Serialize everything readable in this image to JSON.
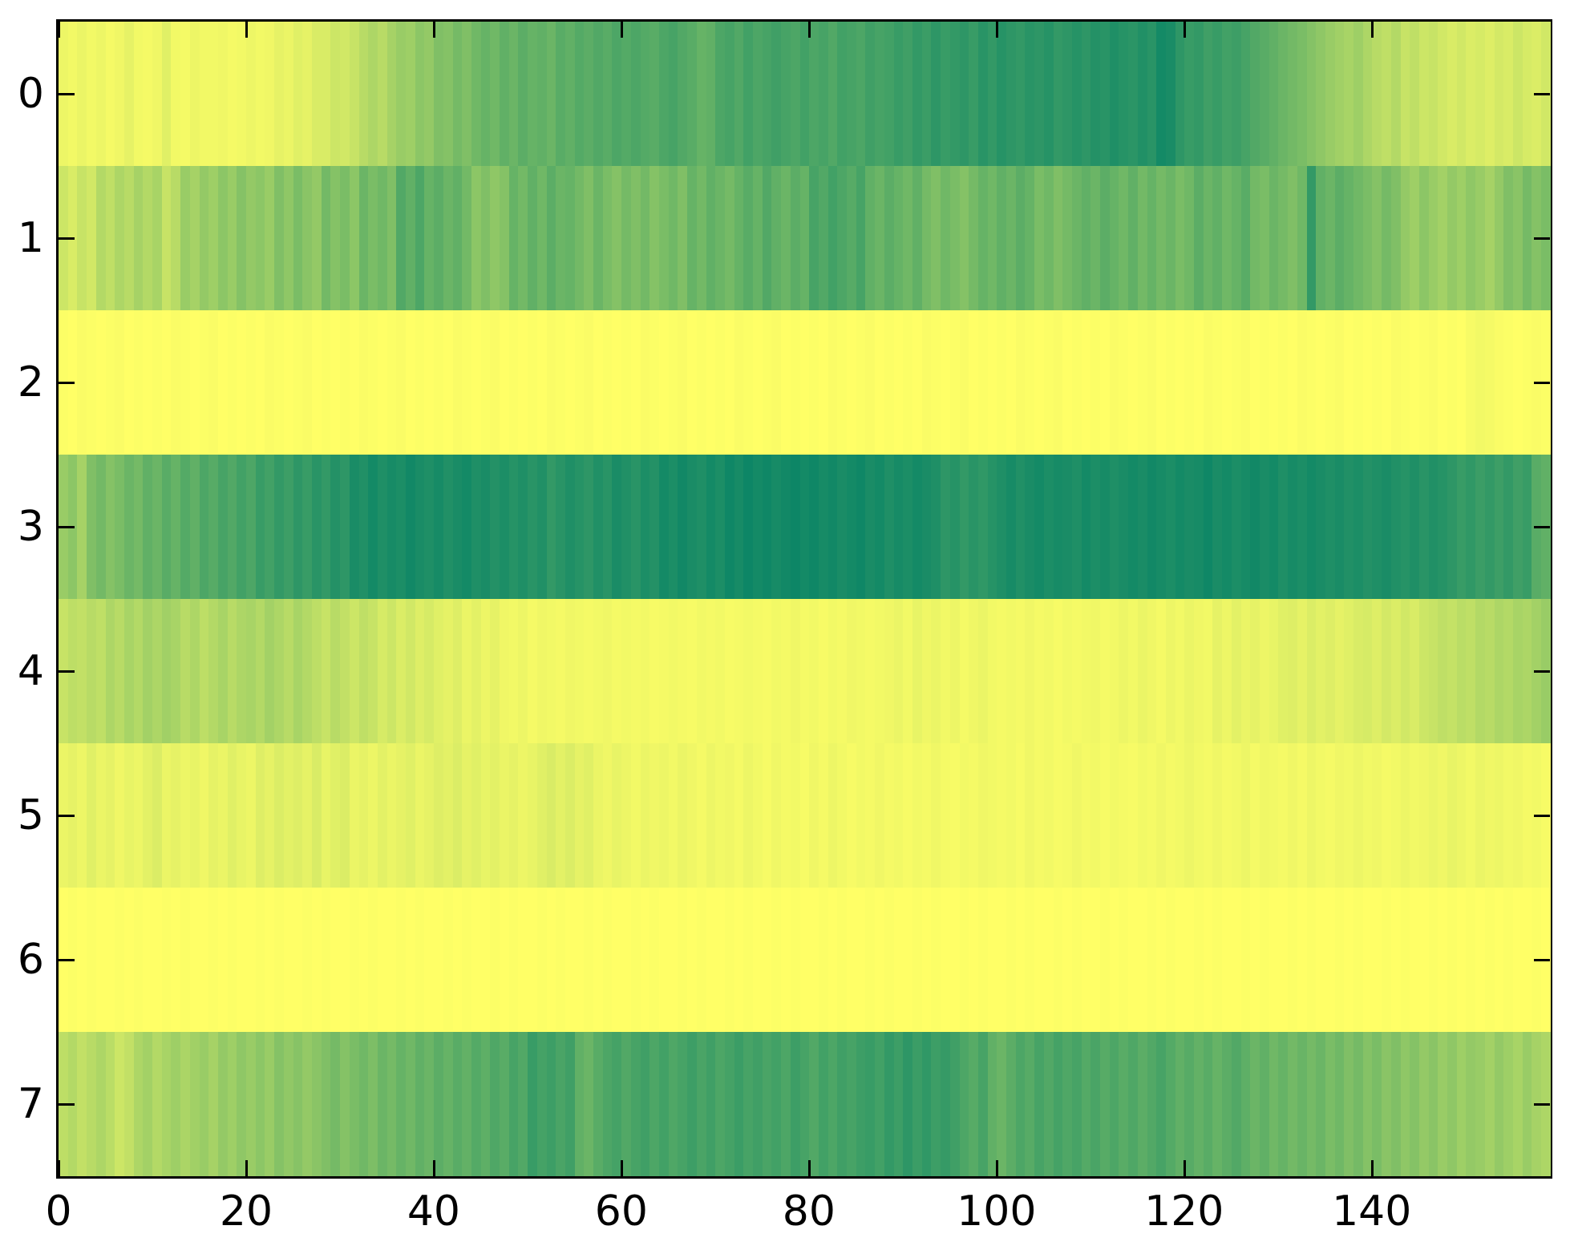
{
  "figure": {
    "background": "#ffffff"
  },
  "axis": {
    "spine_color": "#000000",
    "tick_color": "#000000",
    "tick_label_color": "#000000",
    "tick_direction": "in",
    "grid": false,
    "legend": "none",
    "title": "",
    "xlabel": "",
    "ylabel": ""
  },
  "chart_data": {
    "type": "heatmap",
    "colormap": {
      "name": "summer",
      "low_color": "#008066",
      "high_color": "#ffff66",
      "value_range": [
        0,
        1
      ]
    },
    "x_range": [
      0,
      159
    ],
    "n_rows": 8,
    "n_cols": 159,
    "x_ticks": [
      0,
      20,
      40,
      60,
      80,
      100,
      120,
      140
    ],
    "y_ticks": [
      0,
      1,
      2,
      3,
      4,
      5,
      6,
      7
    ],
    "rows": [
      [
        0.93,
        0.95,
        0.92,
        0.95,
        0.93,
        0.96,
        0.94,
        0.9,
        0.95,
        0.96,
        0.94,
        0.88,
        0.95,
        0.96,
        0.93,
        0.95,
        0.95,
        0.94,
        0.96,
        0.95,
        0.93,
        0.95,
        0.94,
        0.9,
        0.92,
        0.88,
        0.9,
        0.85,
        0.85,
        0.8,
        0.82,
        0.78,
        0.72,
        0.68,
        0.72,
        0.65,
        0.6,
        0.62,
        0.55,
        0.58,
        0.5,
        0.52,
        0.46,
        0.5,
        0.44,
        0.4,
        0.44,
        0.38,
        0.42,
        0.36,
        0.4,
        0.38,
        0.42,
        0.35,
        0.38,
        0.33,
        0.36,
        0.32,
        0.35,
        0.3,
        0.33,
        0.3,
        0.33,
        0.35,
        0.3,
        0.28,
        0.32,
        0.35,
        0.4,
        0.38,
        0.3,
        0.28,
        0.32,
        0.26,
        0.3,
        0.28,
        0.25,
        0.28,
        0.3,
        0.26,
        0.3,
        0.28,
        0.32,
        0.26,
        0.28,
        0.3,
        0.25,
        0.28,
        0.26,
        0.22,
        0.25,
        0.2,
        0.23,
        0.18,
        0.22,
        0.2,
        0.18,
        0.22,
        0.16,
        0.2,
        0.15,
        0.18,
        0.2,
        0.16,
        0.18,
        0.15,
        0.2,
        0.18,
        0.15,
        0.18,
        0.14,
        0.16,
        0.12,
        0.15,
        0.17,
        0.13,
        0.16,
        0.08,
        0.1,
        0.18,
        0.22,
        0.2,
        0.25,
        0.22,
        0.26,
        0.24,
        0.28,
        0.32,
        0.35,
        0.38,
        0.42,
        0.45,
        0.48,
        0.52,
        0.56,
        0.6,
        0.63,
        0.66,
        0.62,
        0.68,
        0.72,
        0.75,
        0.7,
        0.78,
        0.75,
        0.8,
        0.78,
        0.82,
        0.85,
        0.82,
        0.86,
        0.84,
        0.87,
        0.83,
        0.85,
        0.8,
        0.84,
        0.86,
        0.82
      ],
      [
        0.8,
        0.85,
        0.78,
        0.82,
        0.7,
        0.75,
        0.68,
        0.72,
        0.65,
        0.7,
        0.66,
        0.78,
        0.72,
        0.6,
        0.65,
        0.58,
        0.62,
        0.55,
        0.6,
        0.52,
        0.58,
        0.55,
        0.6,
        0.5,
        0.56,
        0.48,
        0.54,
        0.58,
        0.45,
        0.52,
        0.48,
        0.55,
        0.42,
        0.48,
        0.44,
        0.5,
        0.32,
        0.38,
        0.3,
        0.4,
        0.36,
        0.42,
        0.38,
        0.45,
        0.55,
        0.5,
        0.56,
        0.52,
        0.4,
        0.45,
        0.38,
        0.44,
        0.36,
        0.42,
        0.4,
        0.45,
        0.5,
        0.42,
        0.48,
        0.52,
        0.46,
        0.5,
        0.45,
        0.52,
        0.48,
        0.44,
        0.5,
        0.4,
        0.45,
        0.38,
        0.42,
        0.46,
        0.4,
        0.35,
        0.4,
        0.32,
        0.38,
        0.42,
        0.36,
        0.4,
        0.28,
        0.32,
        0.26,
        0.3,
        0.34,
        0.28,
        0.38,
        0.42,
        0.36,
        0.4,
        0.44,
        0.38,
        0.46,
        0.5,
        0.44,
        0.48,
        0.52,
        0.46,
        0.4,
        0.44,
        0.38,
        0.42,
        0.36,
        0.4,
        0.48,
        0.44,
        0.5,
        0.46,
        0.42,
        0.38,
        0.42,
        0.36,
        0.4,
        0.44,
        0.38,
        0.45,
        0.4,
        0.46,
        0.42,
        0.48,
        0.44,
        0.36,
        0.42,
        0.38,
        0.44,
        0.4,
        0.35,
        0.45,
        0.48,
        0.42,
        0.46,
        0.5,
        0.44,
        0.2,
        0.38,
        0.42,
        0.36,
        0.4,
        0.44,
        0.48,
        0.52,
        0.46,
        0.5,
        0.58,
        0.62,
        0.55,
        0.6,
        0.64,
        0.58,
        0.62,
        0.56,
        0.6,
        0.65,
        0.58,
        0.5,
        0.54,
        0.46,
        0.52,
        0.48
      ],
      [
        0.99,
        1.0,
        0.98,
        0.99,
        1.0,
        0.99,
        0.98,
        1.0,
        0.99,
        1.0,
        0.99,
        1.0,
        0.98,
        0.99,
        1.0,
        0.99,
        0.98,
        1.0,
        0.99,
        1.0,
        0.99,
        1.0,
        0.98,
        0.99,
        1.0,
        0.99,
        0.98,
        1.0,
        0.99,
        1.0,
        0.99,
        1.0,
        0.98,
        0.99,
        1.0,
        0.99,
        0.98,
        1.0,
        0.99,
        1.0,
        0.99,
        1.0,
        0.98,
        0.99,
        1.0,
        0.99,
        0.98,
        1.0,
        0.99,
        1.0,
        0.99,
        1.0,
        0.98,
        0.99,
        1.0,
        0.99,
        0.98,
        1.0,
        0.99,
        1.0,
        0.99,
        1.0,
        0.98,
        0.99,
        1.0,
        0.99,
        0.98,
        1.0,
        0.99,
        1.0,
        0.99,
        1.0,
        0.98,
        0.99,
        1.0,
        0.99,
        0.98,
        1.0,
        0.99,
        1.0,
        0.99,
        1.0,
        0.98,
        0.99,
        1.0,
        0.99,
        0.98,
        1.0,
        0.99,
        1.0,
        0.99,
        1.0,
        0.98,
        0.99,
        1.0,
        0.99,
        0.98,
        1.0,
        0.99,
        1.0,
        0.99,
        1.0,
        0.98,
        0.99,
        1.0,
        0.99,
        0.98,
        1.0,
        0.99,
        1.0,
        0.99,
        1.0,
        0.98,
        0.99,
        1.0,
        0.99,
        0.98,
        1.0,
        0.99,
        1.0,
        0.99,
        1.0,
        0.98,
        0.99,
        1.0,
        0.99,
        0.98,
        1.0,
        0.99,
        1.0,
        0.99,
        1.0,
        0.98,
        0.99,
        1.0,
        0.99,
        0.98,
        1.0,
        0.99,
        1.0,
        0.99,
        1.0,
        0.98,
        0.99,
        1.0,
        0.99,
        0.98,
        1.0,
        0.99,
        1.0,
        0.97,
        0.95,
        0.96,
        0.98,
        0.99,
        1.0,
        0.99,
        0.98,
        0.99
      ],
      [
        0.6,
        0.55,
        0.65,
        0.5,
        0.45,
        0.52,
        0.48,
        0.42,
        0.46,
        0.38,
        0.42,
        0.35,
        0.4,
        0.33,
        0.38,
        0.3,
        0.34,
        0.28,
        0.32,
        0.26,
        0.3,
        0.22,
        0.26,
        0.2,
        0.24,
        0.18,
        0.22,
        0.16,
        0.2,
        0.14,
        0.18,
        0.1,
        0.13,
        0.08,
        0.12,
        0.09,
        0.11,
        0.07,
        0.1,
        0.12,
        0.09,
        0.13,
        0.1,
        0.08,
        0.12,
        0.1,
        0.14,
        0.11,
        0.15,
        0.12,
        0.16,
        0.13,
        0.2,
        0.16,
        0.12,
        0.15,
        0.18,
        0.13,
        0.16,
        0.1,
        0.13,
        0.16,
        0.11,
        0.14,
        0.08,
        0.11,
        0.07,
        0.1,
        0.12,
        0.08,
        0.11,
        0.06,
        0.09,
        0.05,
        0.08,
        0.06,
        0.09,
        0.07,
        0.05,
        0.08,
        0.06,
        0.09,
        0.07,
        0.1,
        0.08,
        0.06,
        0.1,
        0.08,
        0.12,
        0.09,
        0.11,
        0.08,
        0.1,
        0.12,
        0.18,
        0.15,
        0.2,
        0.16,
        0.19,
        0.15,
        0.12,
        0.09,
        0.13,
        0.1,
        0.08,
        0.11,
        0.09,
        0.1,
        0.12,
        0.08,
        0.11,
        0.09,
        0.12,
        0.1,
        0.08,
        0.1,
        0.07,
        0.09,
        0.11,
        0.08,
        0.1,
        0.09,
        0.06,
        0.1,
        0.08,
        0.11,
        0.09,
        0.07,
        0.1,
        0.08,
        0.12,
        0.09,
        0.11,
        0.08,
        0.1,
        0.12,
        0.1,
        0.13,
        0.11,
        0.14,
        0.12,
        0.1,
        0.13,
        0.15,
        0.12,
        0.16,
        0.13,
        0.15,
        0.18,
        0.22,
        0.19,
        0.23,
        0.2,
        0.24,
        0.2,
        0.25,
        0.22,
        0.35,
        0.38
      ],
      [
        0.78,
        0.74,
        0.76,
        0.72,
        0.75,
        0.68,
        0.72,
        0.66,
        0.7,
        0.64,
        0.68,
        0.63,
        0.66,
        0.72,
        0.68,
        0.74,
        0.7,
        0.66,
        0.72,
        0.68,
        0.66,
        0.7,
        0.64,
        0.68,
        0.72,
        0.66,
        0.7,
        0.74,
        0.78,
        0.72,
        0.76,
        0.8,
        0.75,
        0.78,
        0.84,
        0.8,
        0.86,
        0.82,
        0.87,
        0.84,
        0.88,
        0.9,
        0.87,
        0.92,
        0.89,
        0.93,
        0.9,
        0.94,
        0.95,
        0.93,
        0.96,
        0.94,
        0.95,
        0.96,
        0.94,
        0.95,
        0.96,
        0.95,
        0.94,
        0.96,
        0.95,
        0.96,
        0.95,
        0.97,
        0.96,
        0.95,
        0.96,
        0.97,
        0.95,
        0.96,
        0.95,
        0.97,
        0.96,
        0.95,
        0.96,
        0.97,
        0.95,
        0.96,
        0.94,
        0.96,
        0.95,
        0.97,
        0.95,
        0.96,
        0.94,
        0.95,
        0.96,
        0.95,
        0.94,
        0.92,
        0.95,
        0.91,
        0.94,
        0.92,
        0.95,
        0.93,
        0.96,
        0.94,
        0.92,
        0.95,
        0.96,
        0.95,
        0.96,
        0.94,
        0.96,
        0.95,
        0.97,
        0.95,
        0.96,
        0.95,
        0.94,
        0.96,
        0.95,
        0.93,
        0.95,
        0.92,
        0.94,
        0.96,
        0.93,
        0.95,
        0.92,
        0.94,
        0.95,
        0.9,
        0.93,
        0.89,
        0.92,
        0.9,
        0.93,
        0.91,
        0.88,
        0.87,
        0.9,
        0.86,
        0.89,
        0.87,
        0.9,
        0.88,
        0.85,
        0.84,
        0.87,
        0.83,
        0.86,
        0.82,
        0.85,
        0.8,
        0.78,
        0.75,
        0.77,
        0.73,
        0.75,
        0.7,
        0.72,
        0.68,
        0.7,
        0.66,
        0.68,
        0.64,
        0.6
      ],
      [
        0.92,
        0.9,
        0.93,
        0.88,
        0.92,
        0.9,
        0.94,
        0.91,
        0.93,
        0.89,
        0.86,
        0.92,
        0.9,
        0.93,
        0.91,
        0.94,
        0.9,
        0.92,
        0.88,
        0.91,
        0.93,
        0.87,
        0.9,
        0.86,
        0.89,
        0.87,
        0.9,
        0.85,
        0.91,
        0.88,
        0.86,
        0.92,
        0.9,
        0.93,
        0.89,
        0.92,
        0.9,
        0.88,
        0.92,
        0.9,
        0.87,
        0.89,
        0.86,
        0.9,
        0.88,
        0.91,
        0.89,
        0.92,
        0.9,
        0.93,
        0.91,
        0.88,
        0.85,
        0.89,
        0.86,
        0.9,
        0.88,
        0.92,
        0.94,
        0.91,
        0.93,
        0.95,
        0.92,
        0.94,
        0.93,
        0.95,
        0.92,
        0.94,
        0.96,
        0.93,
        0.95,
        0.94,
        0.96,
        0.93,
        0.95,
        0.97,
        0.94,
        0.96,
        0.95,
        0.97,
        0.94,
        0.96,
        0.93,
        0.95,
        0.97,
        0.95,
        0.96,
        0.94,
        0.96,
        0.95,
        0.97,
        0.95,
        0.96,
        0.94,
        0.96,
        0.97,
        0.95,
        0.96,
        0.94,
        0.95,
        0.96,
        0.95,
        0.97,
        0.94,
        0.96,
        0.95,
        0.97,
        0.96,
        0.94,
        0.96,
        0.95,
        0.97,
        0.95,
        0.96,
        0.97,
        0.95,
        0.96,
        0.94,
        0.96,
        0.95,
        0.93,
        0.95,
        0.96,
        0.94,
        0.96,
        0.95,
        0.93,
        0.96,
        0.94,
        0.95,
        0.96,
        0.94,
        0.96,
        0.93,
        0.95,
        0.96,
        0.94,
        0.95,
        0.93,
        0.95,
        0.94,
        0.96,
        0.95,
        0.93,
        0.95,
        0.94,
        0.92,
        0.94,
        0.91,
        0.93,
        0.95,
        0.92,
        0.94,
        0.93,
        0.95,
        0.94,
        0.96,
        0.95,
        0.97
      ],
      [
        1.0,
        0.99,
        1.0,
        0.99,
        1.0,
        1.0,
        0.99,
        1.0,
        0.99,
        1.0,
        1.0,
        0.99,
        1.0,
        0.99,
        1.0,
        1.0,
        0.99,
        1.0,
        0.99,
        1.0,
        1.0,
        0.99,
        1.0,
        0.99,
        1.0,
        1.0,
        0.99,
        1.0,
        0.99,
        1.0,
        1.0,
        0.99,
        1.0,
        0.99,
        1.0,
        1.0,
        0.99,
        1.0,
        0.99,
        1.0,
        1.0,
        0.99,
        1.0,
        0.99,
        1.0,
        1.0,
        0.99,
        1.0,
        0.99,
        1.0,
        1.0,
        0.99,
        1.0,
        0.99,
        1.0,
        1.0,
        0.99,
        1.0,
        0.99,
        1.0,
        1.0,
        0.99,
        1.0,
        0.99,
        1.0,
        1.0,
        0.99,
        1.0,
        0.99,
        1.0,
        1.0,
        0.99,
        1.0,
        0.99,
        1.0,
        1.0,
        0.99,
        1.0,
        0.99,
        1.0,
        1.0,
        0.99,
        1.0,
        0.99,
        1.0,
        1.0,
        0.99,
        1.0,
        0.99,
        1.0,
        1.0,
        0.99,
        1.0,
        0.99,
        1.0,
        1.0,
        0.99,
        1.0,
        0.99,
        1.0,
        1.0,
        0.99,
        1.0,
        0.99,
        1.0,
        1.0,
        0.99,
        1.0,
        0.99,
        1.0,
        1.0,
        0.99,
        1.0,
        0.99,
        1.0,
        1.0,
        0.99,
        1.0,
        0.99,
        1.0,
        1.0,
        0.99,
        1.0,
        0.99,
        1.0,
        1.0,
        0.99,
        1.0,
        0.99,
        1.0,
        1.0,
        0.99,
        1.0,
        0.99,
        1.0,
        1.0,
        0.99,
        1.0,
        0.99,
        1.0,
        1.0,
        0.99,
        1.0,
        0.99,
        1.0,
        1.0,
        0.99,
        1.0,
        0.99,
        1.0,
        0.99,
        1.0,
        0.99,
        1.0,
        0.99,
        1.0,
        1.0,
        0.99,
        1.0
      ],
      [
        0.74,
        0.7,
        0.76,
        0.72,
        0.68,
        0.73,
        0.8,
        0.76,
        0.68,
        0.64,
        0.7,
        0.66,
        0.62,
        0.67,
        0.63,
        0.6,
        0.65,
        0.58,
        0.62,
        0.56,
        0.6,
        0.55,
        0.6,
        0.52,
        0.57,
        0.53,
        0.58,
        0.54,
        0.5,
        0.46,
        0.52,
        0.48,
        0.44,
        0.49,
        0.42,
        0.46,
        0.4,
        0.44,
        0.38,
        0.42,
        0.36,
        0.4,
        0.35,
        0.39,
        0.33,
        0.37,
        0.31,
        0.35,
        0.28,
        0.32,
        0.22,
        0.27,
        0.24,
        0.29,
        0.25,
        0.38,
        0.42,
        0.35,
        0.3,
        0.27,
        0.32,
        0.28,
        0.25,
        0.3,
        0.26,
        0.31,
        0.28,
        0.24,
        0.29,
        0.25,
        0.3,
        0.27,
        0.23,
        0.28,
        0.25,
        0.29,
        0.26,
        0.3,
        0.24,
        0.28,
        0.32,
        0.26,
        0.3,
        0.25,
        0.28,
        0.24,
        0.22,
        0.26,
        0.2,
        0.24,
        0.18,
        0.23,
        0.19,
        0.24,
        0.21,
        0.25,
        0.3,
        0.34,
        0.28,
        0.38,
        0.42,
        0.36,
        0.3,
        0.34,
        0.28,
        0.32,
        0.27,
        0.31,
        0.28,
        0.33,
        0.29,
        0.34,
        0.3,
        0.35,
        0.31,
        0.36,
        0.32,
        0.28,
        0.33,
        0.38,
        0.34,
        0.39,
        0.35,
        0.4,
        0.36,
        0.32,
        0.37,
        0.42,
        0.38,
        0.44,
        0.4,
        0.45,
        0.41,
        0.46,
        0.42,
        0.48,
        0.44,
        0.5,
        0.46,
        0.52,
        0.48,
        0.54,
        0.5,
        0.56,
        0.52,
        0.58,
        0.54,
        0.6,
        0.56,
        0.62,
        0.58,
        0.6,
        0.64,
        0.58,
        0.62,
        0.66,
        0.6,
        0.65,
        0.68
      ]
    ]
  }
}
